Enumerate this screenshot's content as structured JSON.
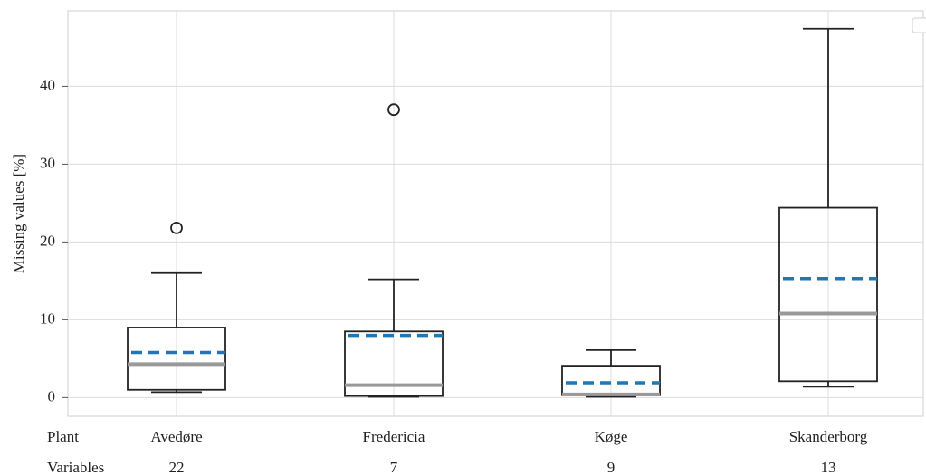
{
  "chart_data": {
    "type": "box",
    "y_label": "Missing values [%]",
    "categories": [
      "Avedøre",
      "Fredericia",
      "Køge",
      "Skanderborg"
    ],
    "boxes": [
      {
        "whislo": 0.7,
        "q1": 1.0,
        "med": 4.3,
        "mean": 5.8,
        "q3": 9.0,
        "whishi": 16.0,
        "fliers": [
          21.8
        ]
      },
      {
        "whislo": 0.1,
        "q1": 0.2,
        "med": 1.6,
        "mean": 8.0,
        "q3": 8.5,
        "whishi": 15.2,
        "fliers": [
          37.0
        ]
      },
      {
        "whislo": 0.1,
        "q1": 0.3,
        "med": 0.4,
        "mean": 1.9,
        "q3": 4.1,
        "whishi": 6.1,
        "fliers": []
      },
      {
        "whislo": 1.4,
        "q1": 2.1,
        "med": 10.8,
        "mean": 15.3,
        "q3": 24.4,
        "whishi": 47.4,
        "fliers": []
      }
    ],
    "box_color": "#222222",
    "median_color": "#999999",
    "mean_color": "#1f77b4",
    "ylim": [
      -2.4,
      49.7
    ],
    "yticks": [
      0,
      10,
      20,
      30,
      40
    ],
    "grid": true,
    "table": {
      "row_labels": [
        "Plant",
        "Variables"
      ],
      "variables": [
        22,
        7,
        9,
        13
      ]
    }
  }
}
